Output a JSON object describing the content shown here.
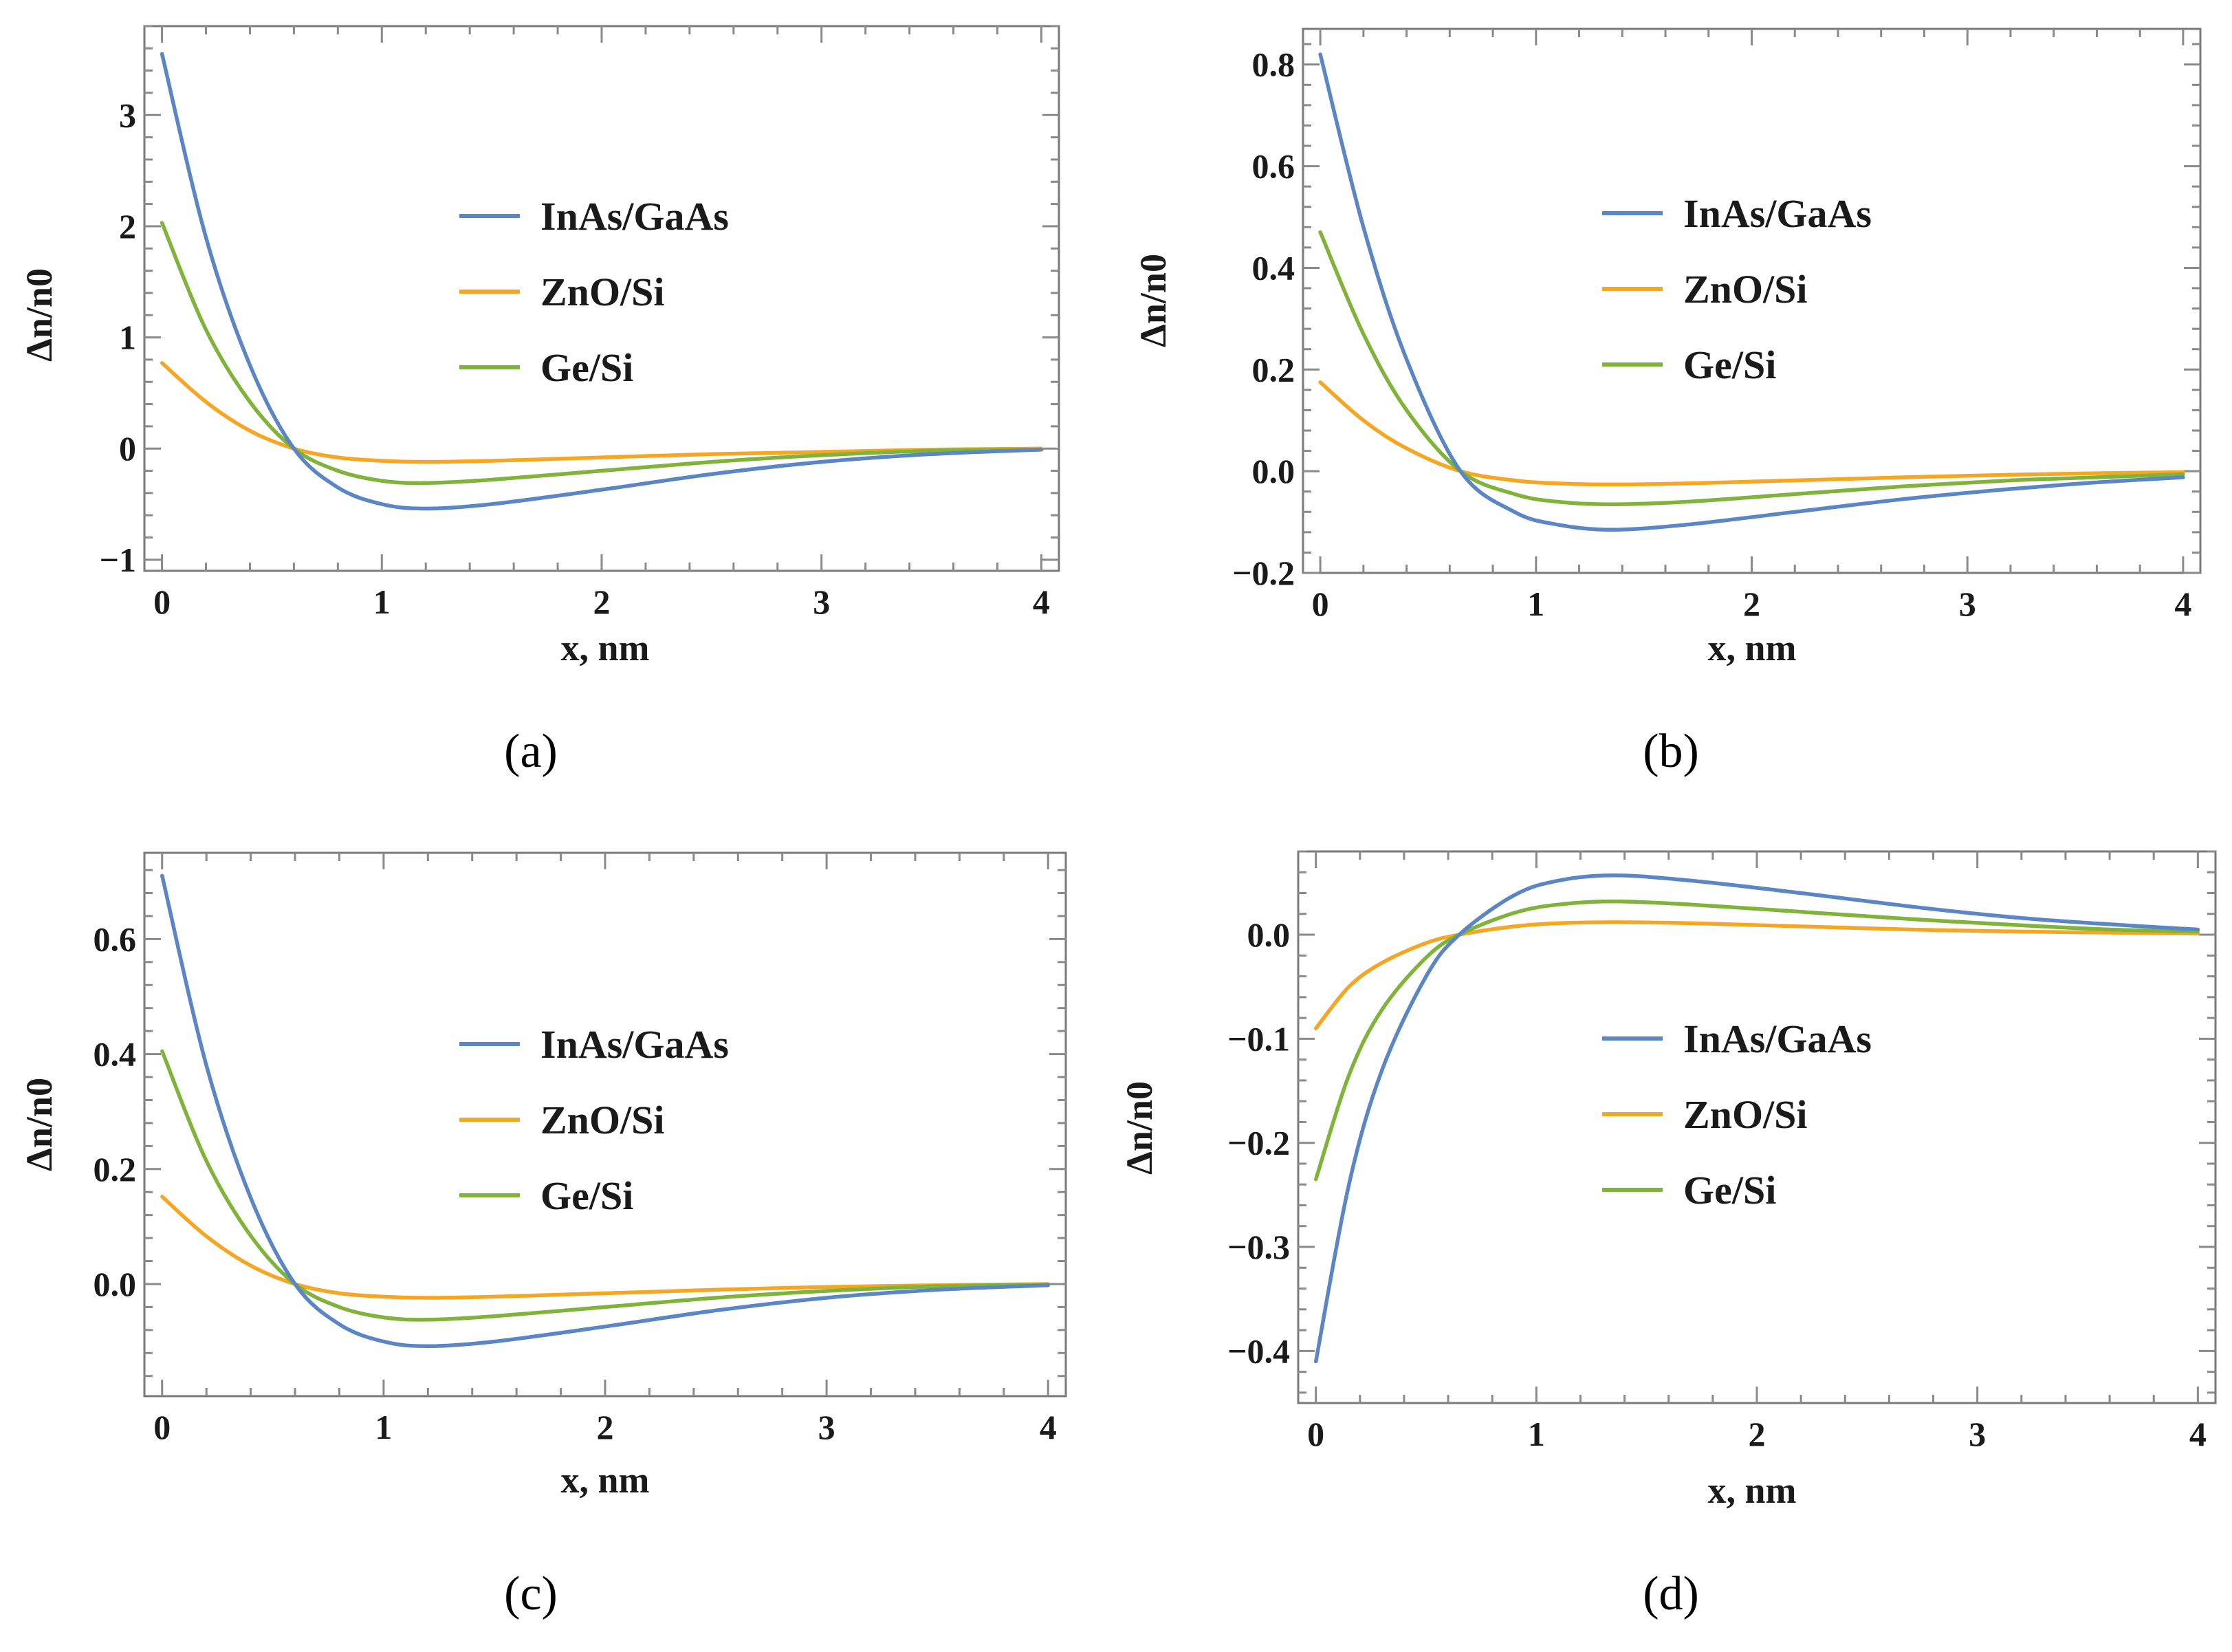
{
  "colors": {
    "InAs/GaAs": "#5a86c5",
    "ZnO/Si": "#f5a623",
    "Ge/Si": "#7fb33a"
  },
  "chart_data": [
    {
      "type": "line",
      "caption": "(a)",
      "xlabel": "x, nm",
      "ylabel": "Δn/n0",
      "xlim": [
        -0.08,
        4.08
      ],
      "ylim": [
        -1.1,
        3.8
      ],
      "xticks": [
        0,
        1,
        2,
        3,
        4
      ],
      "xtick_labels": [
        "0",
        "1",
        "2",
        "3",
        "4"
      ],
      "yticks": [
        -1,
        0,
        1,
        2,
        3
      ],
      "ytick_labels": [
        "−1",
        "0",
        "1",
        "2",
        "3"
      ],
      "legend": [
        "InAs/GaAs",
        "ZnO/Si",
        "Ge/Si"
      ],
      "legend_position": "upper-center",
      "x": [
        0,
        0.2,
        0.4,
        0.6,
        0.8,
        1.0,
        1.2,
        1.5,
        2.0,
        2.5,
        3.0,
        3.5,
        4.0
      ],
      "series": [
        {
          "name": "InAs/GaAs",
          "values": [
            3.55,
            1.9,
            0.75,
            0.0,
            -0.35,
            -0.5,
            -0.54,
            -0.5,
            -0.37,
            -0.23,
            -0.12,
            -0.05,
            -0.01
          ]
        },
        {
          "name": "ZnO/Si",
          "values": [
            0.77,
            0.42,
            0.16,
            0.0,
            -0.08,
            -0.11,
            -0.12,
            -0.11,
            -0.08,
            -0.05,
            -0.03,
            -0.01,
            0.0
          ]
        },
        {
          "name": "Ge/Si",
          "values": [
            2.03,
            1.07,
            0.42,
            0.0,
            -0.2,
            -0.29,
            -0.31,
            -0.28,
            -0.2,
            -0.12,
            -0.06,
            -0.02,
            -0.01
          ]
        }
      ]
    },
    {
      "type": "line",
      "caption": "(b)",
      "xlabel": "x, nm",
      "ylabel": "Δn/n0",
      "xlim": [
        -0.08,
        4.08
      ],
      "ylim": [
        -0.2,
        0.87
      ],
      "xticks": [
        0,
        1,
        2,
        3,
        4
      ],
      "xtick_labels": [
        "0",
        "1",
        "2",
        "3",
        "4"
      ],
      "yticks": [
        -0.2,
        0.0,
        0.2,
        0.4,
        0.6,
        0.8
      ],
      "ytick_labels": [
        "−0.2",
        "0.0",
        "0.2",
        "0.4",
        "0.6",
        "0.8"
      ],
      "legend": [
        "InAs/GaAs",
        "ZnO/Si",
        "Ge/Si"
      ],
      "legend_position": "upper-center",
      "x": [
        0,
        0.2,
        0.4,
        0.65,
        0.9,
        1.1,
        1.35,
        1.7,
        2.2,
        2.7,
        3.2,
        3.6,
        4.0
      ],
      "series": [
        {
          "name": "InAs/GaAs",
          "values": [
            0.82,
            0.48,
            0.22,
            0.0,
            -0.08,
            -0.105,
            -0.115,
            -0.105,
            -0.08,
            -0.055,
            -0.035,
            -0.022,
            -0.012
          ]
        },
        {
          "name": "ZnO/Si",
          "values": [
            0.175,
            0.1,
            0.045,
            0.0,
            -0.018,
            -0.024,
            -0.026,
            -0.024,
            -0.018,
            -0.012,
            -0.007,
            -0.004,
            -0.002
          ]
        },
        {
          "name": "Ge/Si",
          "values": [
            0.47,
            0.27,
            0.12,
            0.0,
            -0.045,
            -0.06,
            -0.065,
            -0.06,
            -0.045,
            -0.03,
            -0.018,
            -0.012,
            -0.006
          ]
        }
      ]
    },
    {
      "type": "line",
      "caption": "(c)",
      "xlabel": "x, nm",
      "ylabel": "Δn/n0",
      "xlim": [
        -0.08,
        4.08
      ],
      "ylim": [
        -0.195,
        0.75
      ],
      "xticks": [
        0,
        1,
        2,
        3,
        4
      ],
      "xtick_labels": [
        "0",
        "1",
        "2",
        "3",
        "4"
      ],
      "yticks": [
        0.0,
        0.2,
        0.4,
        0.6
      ],
      "ytick_labels": [
        "0.0",
        "0.2",
        "0.4",
        "0.6"
      ],
      "legend": [
        "InAs/GaAs",
        "ZnO/Si",
        "Ge/Si"
      ],
      "legend_position": "upper-center",
      "x": [
        0,
        0.2,
        0.4,
        0.6,
        0.8,
        1.0,
        1.2,
        1.5,
        2.0,
        2.5,
        3.0,
        3.5,
        4.0
      ],
      "series": [
        {
          "name": "InAs/GaAs",
          "values": [
            0.71,
            0.38,
            0.15,
            0.0,
            -0.07,
            -0.1,
            -0.108,
            -0.1,
            -0.074,
            -0.046,
            -0.024,
            -0.01,
            -0.002
          ]
        },
        {
          "name": "ZnO/Si",
          "values": [
            0.152,
            0.083,
            0.032,
            0.0,
            -0.016,
            -0.022,
            -0.024,
            -0.022,
            -0.016,
            -0.01,
            -0.005,
            -0.002,
            0.0
          ]
        },
        {
          "name": "Ge/Si",
          "values": [
            0.405,
            0.214,
            0.084,
            0.0,
            -0.04,
            -0.058,
            -0.062,
            -0.056,
            -0.04,
            -0.024,
            -0.012,
            -0.004,
            -0.001
          ]
        }
      ]
    },
    {
      "type": "line",
      "caption": "(d)",
      "xlabel": "x, nm",
      "ylabel": "Δn/n0",
      "xlim": [
        -0.08,
        4.08
      ],
      "ylim": [
        -0.45,
        0.08
      ],
      "xticks": [
        0,
        1,
        2,
        3,
        4
      ],
      "xtick_labels": [
        "0",
        "1",
        "2",
        "3",
        "4"
      ],
      "yticks": [
        -0.4,
        -0.3,
        -0.2,
        -0.1,
        0.0
      ],
      "ytick_labels": [
        "−0.4",
        "−0.3",
        "−0.2",
        "−0.1",
        "0.0"
      ],
      "legend": [
        "InAs/GaAs",
        "ZnO/Si",
        "Ge/Si"
      ],
      "legend_position": "center",
      "x": [
        0,
        0.15,
        0.3,
        0.5,
        0.65,
        0.9,
        1.1,
        1.35,
        1.7,
        2.2,
        2.7,
        3.2,
        3.6,
        4.0
      ],
      "series": [
        {
          "name": "InAs/GaAs",
          "values": [
            -0.41,
            -0.24,
            -0.13,
            -0.04,
            0.0,
            0.038,
            0.052,
            0.057,
            0.052,
            0.04,
            0.027,
            0.016,
            0.01,
            0.005
          ]
        },
        {
          "name": "ZnO/Si",
          "values": [
            -0.09,
            -0.05,
            -0.027,
            -0.008,
            0.0,
            0.008,
            0.011,
            0.012,
            0.011,
            0.008,
            0.005,
            0.003,
            0.002,
            0.001
          ]
        },
        {
          "name": "Ge/Si",
          "values": [
            -0.235,
            -0.135,
            -0.072,
            -0.022,
            0.0,
            0.021,
            0.029,
            0.032,
            0.029,
            0.022,
            0.015,
            0.009,
            0.005,
            0.003
          ]
        }
      ]
    }
  ]
}
